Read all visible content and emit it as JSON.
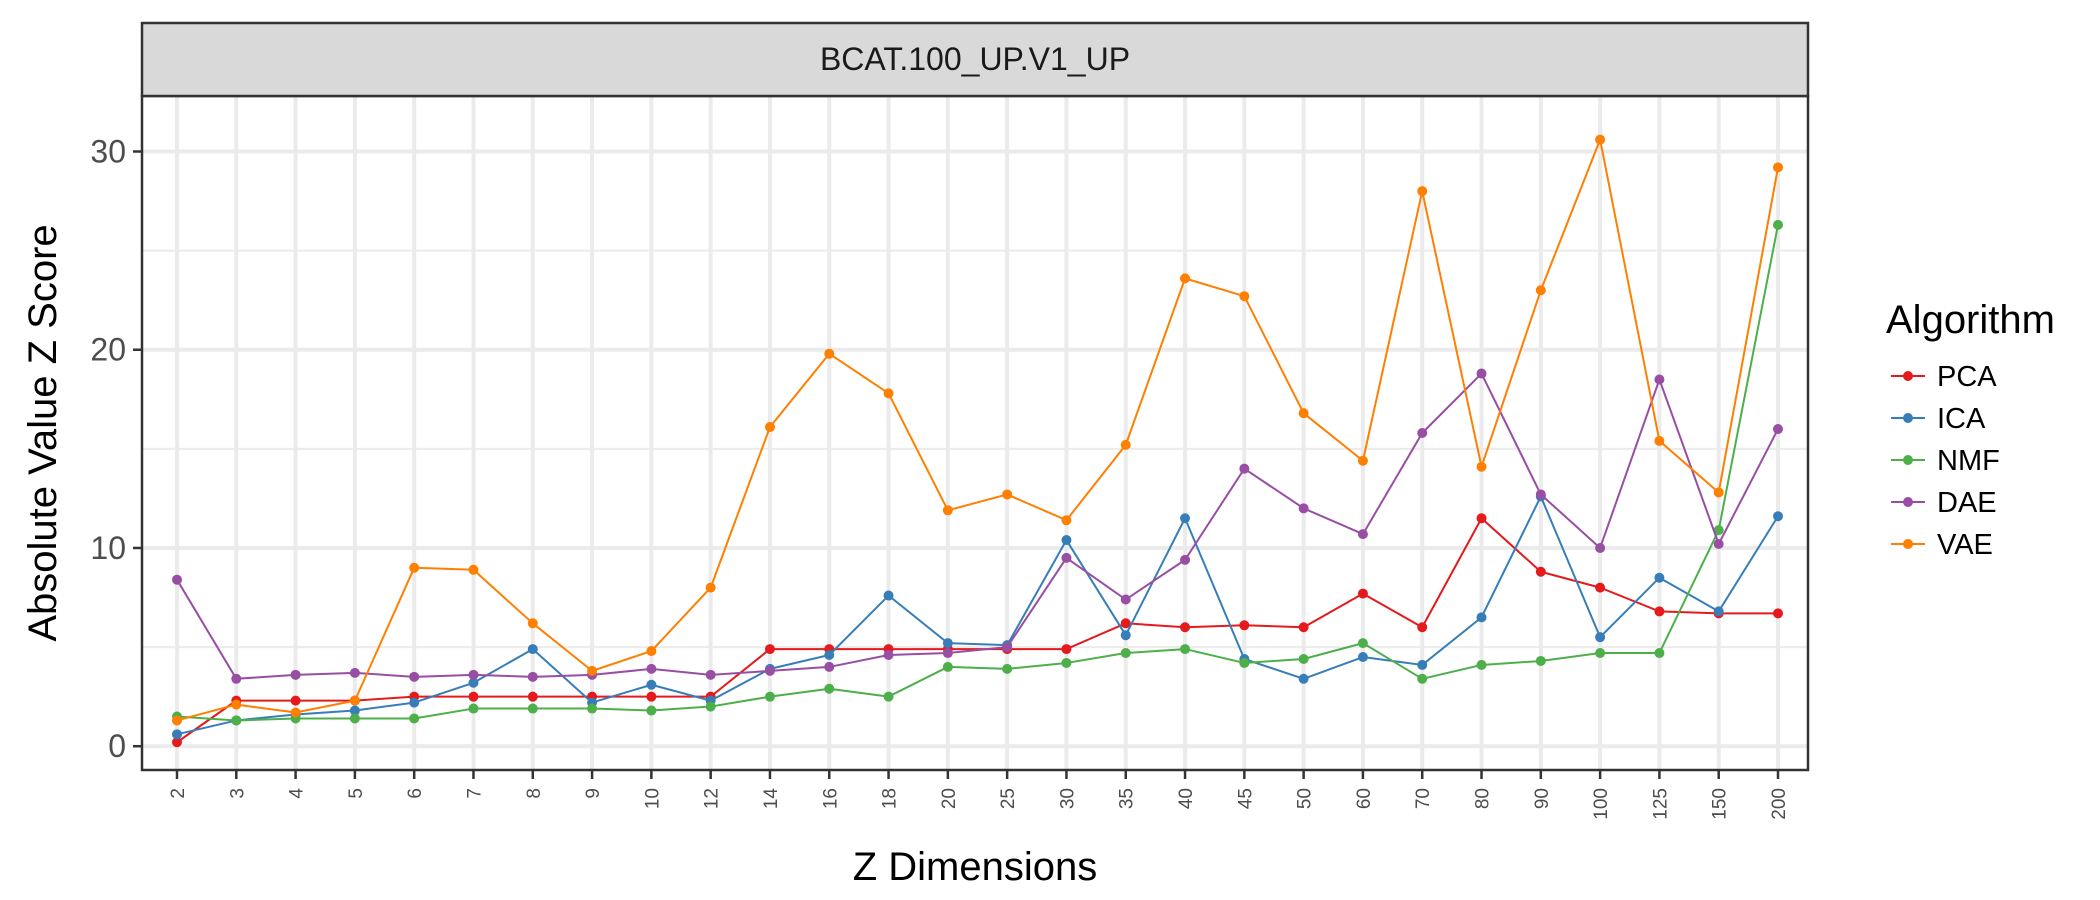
{
  "chart_data": {
    "type": "line",
    "facet_title": "BCAT.100_UP.V1_UP",
    "xlabel": "Z Dimensions",
    "ylabel": "Absolute Value Z Score",
    "categories": [
      "2",
      "3",
      "4",
      "5",
      "6",
      "7",
      "8",
      "9",
      "10",
      "12",
      "14",
      "16",
      "18",
      "20",
      "25",
      "30",
      "35",
      "40",
      "45",
      "50",
      "60",
      "70",
      "80",
      "90",
      "100",
      "125",
      "150",
      "200"
    ],
    "ylim": [
      -1.2,
      32.8
    ],
    "yticks": [
      0,
      10,
      20,
      30
    ],
    "grid": true,
    "legend": {
      "title": "Algorithm",
      "position": "right"
    },
    "series": [
      {
        "name": "PCA",
        "color": "#e41a1c",
        "values": [
          0.2,
          2.3,
          2.3,
          2.3,
          2.5,
          2.5,
          2.5,
          2.5,
          2.5,
          2.5,
          4.9,
          4.9,
          4.9,
          4.9,
          4.9,
          4.9,
          6.2,
          6.0,
          6.1,
          6.0,
          7.7,
          6.0,
          11.5,
          8.8,
          8.0,
          6.8,
          6.7,
          6.7
        ]
      },
      {
        "name": "ICA",
        "color": "#377eb8",
        "values": [
          0.6,
          1.3,
          1.6,
          1.8,
          2.2,
          3.2,
          4.9,
          2.2,
          3.1,
          2.3,
          3.9,
          4.6,
          7.6,
          5.2,
          5.1,
          10.4,
          5.6,
          11.5,
          4.4,
          3.4,
          4.5,
          4.1,
          6.5,
          12.6,
          5.5,
          8.5,
          6.8,
          11.6
        ]
      },
      {
        "name": "NMF",
        "color": "#4daf4a",
        "values": [
          1.5,
          1.3,
          1.4,
          1.4,
          1.4,
          1.9,
          1.9,
          1.9,
          1.8,
          2.0,
          2.5,
          2.9,
          2.5,
          4.0,
          3.9,
          4.2,
          4.7,
          4.9,
          4.2,
          4.4,
          5.2,
          3.4,
          4.1,
          4.3,
          4.7,
          4.7,
          10.9,
          26.3
        ]
      },
      {
        "name": "DAE",
        "color": "#984ea3",
        "values": [
          8.4,
          3.4,
          3.6,
          3.7,
          3.5,
          3.6,
          3.5,
          3.6,
          3.9,
          3.6,
          3.8,
          4.0,
          4.6,
          4.7,
          5.0,
          9.5,
          7.4,
          9.4,
          14.0,
          12.0,
          10.7,
          15.8,
          18.8,
          12.7,
          10.0,
          18.5,
          10.2,
          16.0
        ]
      },
      {
        "name": "VAE",
        "color": "#ff7f00",
        "values": [
          1.3,
          2.1,
          1.7,
          2.3,
          9.0,
          8.9,
          6.2,
          3.8,
          4.8,
          8.0,
          16.1,
          19.8,
          17.8,
          11.9,
          12.7,
          11.4,
          15.2,
          23.6,
          22.7,
          16.8,
          14.4,
          28.0,
          14.1,
          23.0,
          30.6,
          15.4,
          12.8,
          29.2
        ]
      }
    ]
  }
}
